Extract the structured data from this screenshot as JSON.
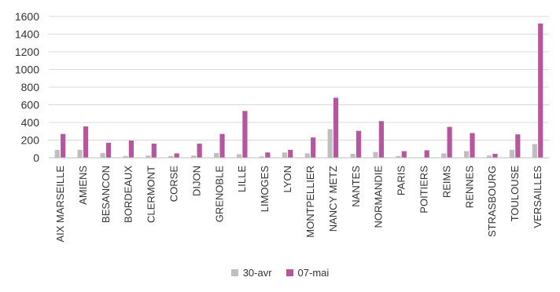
{
  "chart_data": {
    "type": "bar",
    "title": "",
    "xlabel": "",
    "ylabel": "",
    "ylim": [
      0,
      1600
    ],
    "yticks": [
      0,
      200,
      400,
      600,
      800,
      1000,
      1200,
      1400,
      1600
    ],
    "grid": true,
    "legend_position": "bottom",
    "categories": [
      "AIX MARSEILLE",
      "AMIENS",
      "BESANCON",
      "BORDEAUX",
      "CLERMONT",
      "CORSE",
      "DIJON",
      "GRENOBLE",
      "LILLE",
      "LIMOGES",
      "LYON",
      "MONTPELLIER",
      "NANCY METZ",
      "NANTES",
      "NORMANDIE",
      "PARIS",
      "POITIERS",
      "REIMS",
      "RENNES",
      "STRASBOURG",
      "TOULOUSE",
      "VERSAILLES"
    ],
    "series": [
      {
        "name": "30-avr",
        "color": "#bfbfbf",
        "values": [
          90,
          90,
          55,
          20,
          25,
          20,
          25,
          55,
          40,
          15,
          60,
          50,
          325,
          45,
          65,
          20,
          5,
          50,
          75,
          25,
          90,
          155
        ]
      },
      {
        "name": "07-mai",
        "color": "#b5569e",
        "values": [
          270,
          355,
          170,
          195,
          160,
          50,
          160,
          270,
          530,
          60,
          90,
          230,
          680,
          305,
          415,
          75,
          85,
          350,
          280,
          45,
          265,
          1520
        ]
      }
    ]
  }
}
